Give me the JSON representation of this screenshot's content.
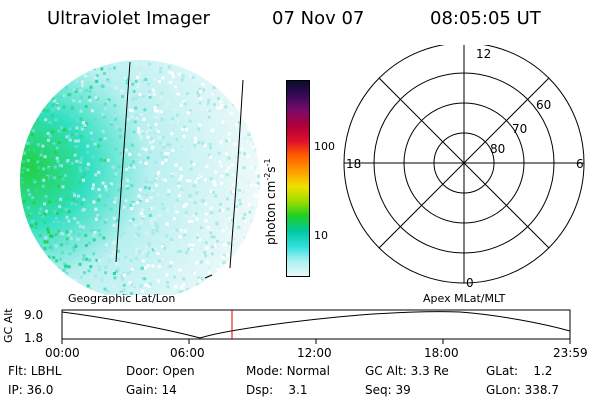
{
  "header": {
    "instrument": "Ultraviolet Imager",
    "date": "07 Nov 07",
    "time": "08:05:05 UT"
  },
  "colorbar": {
    "unit_label_main": "photon cm",
    "unit_sup1": "-2",
    "unit_mid": "s",
    "unit_sup2": "-1",
    "tick_100": "100",
    "tick_10": "10",
    "colors": [
      "#0b0b2a",
      "#3a0a5a",
      "#7a0a6a",
      "#b0003a",
      "#e0102a",
      "#ff5a00",
      "#ff9a00",
      "#f0e000",
      "#9bdc00",
      "#20d020",
      "#00c8a0",
      "#30e0e0",
      "#a8f0f0",
      "#e8f8f8"
    ]
  },
  "polar": {
    "label_top": "12",
    "label_left": "18",
    "label_right": "6",
    "label_bottom": "0",
    "lat_60": "60",
    "lat_70": "70",
    "lat_80": "80"
  },
  "captions": {
    "left": "Geographic Lat/Lon",
    "right": "Apex MLat/MLT"
  },
  "altitude_plot": {
    "axis_label": "GC Alt",
    "y_max": "9.0",
    "y_min": "1.8",
    "x_ticks": [
      "00:00",
      "06:00",
      "12:00",
      "18:00",
      "23:59"
    ],
    "marker_color": "#e00000"
  },
  "status": {
    "flt_label": "Flt:",
    "flt_value": "LBHL",
    "ip_label": "IP:",
    "ip_value": "36.0",
    "door_label": "Door:",
    "door_value": "Open",
    "gain_label": "Gain:",
    "gain_value": "14",
    "mode_label": "Mode:",
    "mode_value": "Normal",
    "dsp_label": "Dsp:",
    "dsp_value": "3.1",
    "gcalt_label": "GC Alt:",
    "gcalt_value": "3.3 Re",
    "seq_label": "Seq:",
    "seq_value": "39",
    "glat_label": "GLat:",
    "glat_value": "1.2",
    "glon_label": "GLon:",
    "glon_value": "338.7"
  }
}
